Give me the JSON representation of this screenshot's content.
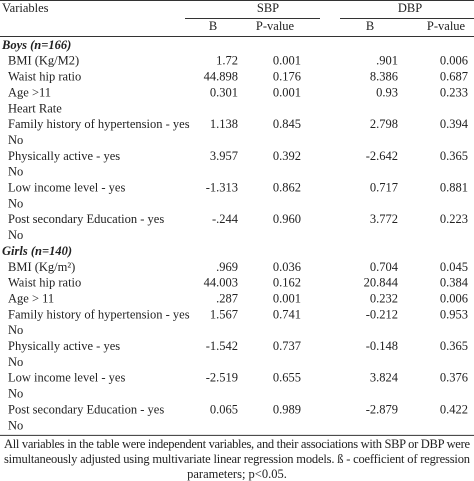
{
  "table": {
    "header": {
      "variables": "Variables",
      "sbp": "SBP",
      "dbp": "DBP",
      "sbp_b": "B",
      "sbp_p": "P-value",
      "dbp_b": "B",
      "dbp_p": "P-value"
    },
    "groups": [
      {
        "title": "Boys (n=166)",
        "rows": [
          [
            "BMI (Kg/M2)",
            "1.72",
            "0.001",
            ".901",
            "0.006"
          ],
          [
            "Waist hip ratio",
            "44.898",
            "0.176",
            "8.386",
            "0.687"
          ],
          [
            "Age >11",
            "0.301",
            "0.001",
            "0.93",
            "0.233"
          ],
          [
            "Heart Rate"
          ],
          [
            "Family history of hypertension - yes",
            "1.138",
            "0.845",
            "2.798",
            "0.394"
          ],
          [
            "No"
          ],
          [
            "Physically active - yes",
            "3.957",
            "0.392",
            "-2.642",
            "0.365"
          ],
          [
            "No"
          ],
          [
            "Low income level - yes",
            "-1.313",
            "0.862",
            "0.717",
            "0.881"
          ],
          [
            "No"
          ],
          [
            "Post secondary Education - yes",
            "-.244",
            "0.960",
            "3.772",
            "0.223"
          ],
          [
            "No"
          ]
        ]
      },
      {
        "title": "Girls (n=140)",
        "rows": [
          [
            "BMI (Kg/m²)",
            ".969",
            "0.036",
            "0.704",
            "0.045"
          ],
          [
            "Waist hip ratio",
            "44.003",
            "0.162",
            "20.844",
            "0.384"
          ],
          [
            "Age > 11",
            ".287",
            "0.001",
            "0.232",
            "0.006"
          ],
          [
            "Family history of hypertension - yes",
            "1.567",
            "0.741",
            "-0.212",
            "0.953"
          ],
          [
            "No"
          ],
          [
            "Physically active - yes",
            "-1.542",
            "0.737",
            "-0.148",
            "0.365"
          ],
          [
            "No"
          ],
          [
            "Low income level - yes",
            "-2.519",
            "0.655",
            "3.824",
            "0.376"
          ],
          [
            "No"
          ],
          [
            "Post secondary Education - yes",
            "0.065",
            "0.989",
            "-2.879",
            "0.422"
          ],
          [
            "No"
          ]
        ]
      }
    ],
    "footnote": [
      "All variables in the table were independent variables, and their associations with SBP or DBP were",
      "simultaneously adjusted using multivariate linear regression models. ß - coefficient of regression",
      "parameters; p<0.05."
    ]
  }
}
